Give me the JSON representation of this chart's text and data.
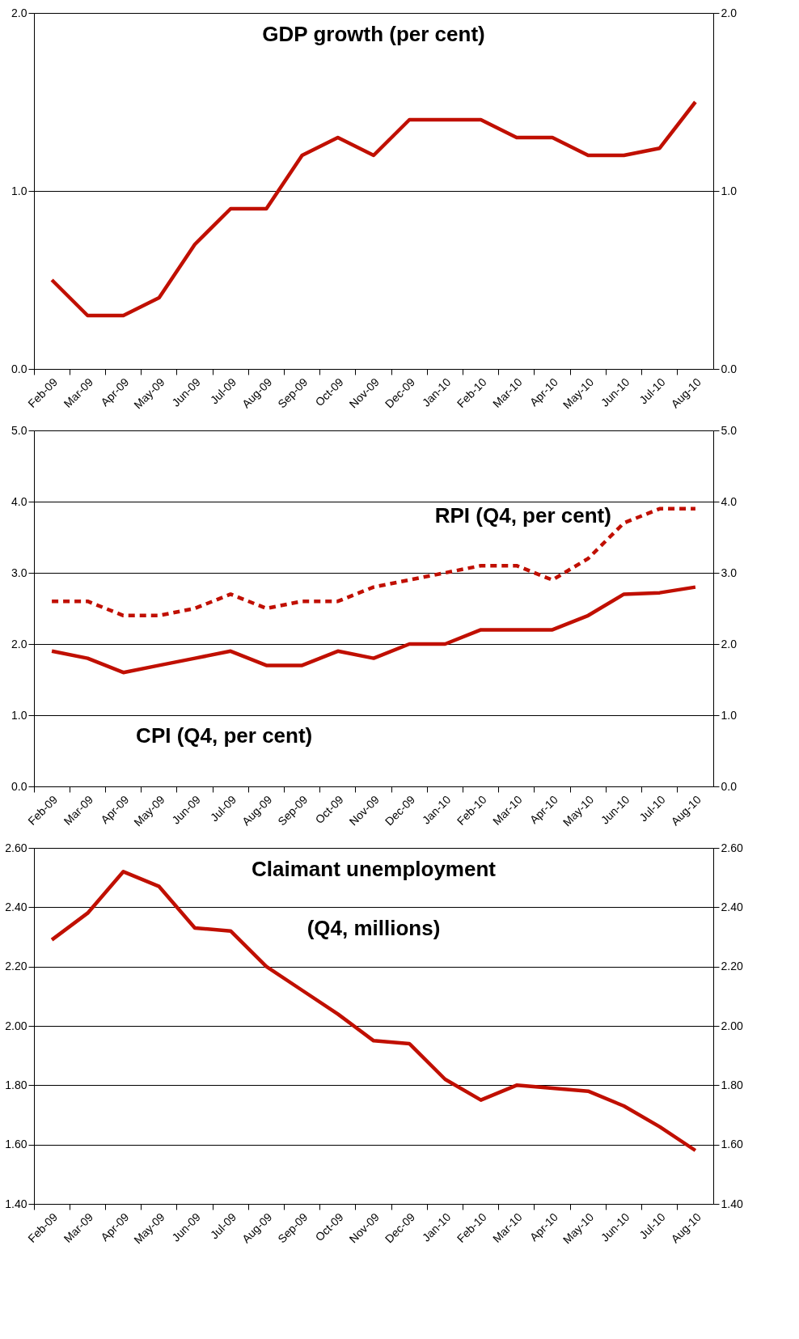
{
  "chart_data": [
    {
      "type": "line",
      "title": "GDP growth (per cent)",
      "categories": [
        "Feb-09",
        "Mar-09",
        "Apr-09",
        "May-09",
        "Jun-09",
        "Jul-09",
        "Aug-09",
        "Sep-09",
        "Oct-09",
        "Nov-09",
        "Dec-09",
        "Jan-10",
        "Feb-10",
        "Mar-10",
        "Apr-10",
        "May-10",
        "Jun-10",
        "Jul-10",
        "Aug-10"
      ],
      "series": [
        {
          "color": "#c00f00",
          "line_style": "solid",
          "values": [
            0.5,
            0.3,
            0.3,
            0.4,
            0.7,
            0.9,
            0.9,
            1.2,
            1.3,
            1.2,
            1.4,
            1.4,
            1.4,
            1.3,
            1.3,
            1.2,
            1.2,
            1.24,
            1.5
          ]
        }
      ],
      "ylim": [
        0,
        2
      ],
      "yticks": [
        {
          "value": 0,
          "label": "0.0"
        },
        {
          "value": 1,
          "label": "1.0"
        },
        {
          "value": 2,
          "label": "2.0"
        }
      ],
      "y2lim": [
        0,
        2
      ],
      "y2ticks": [
        {
          "value": 0,
          "label": "0.0"
        },
        {
          "value": 1,
          "label": "1.0"
        },
        {
          "value": 2,
          "label": "2.0"
        }
      ],
      "grid": "y",
      "marker": "none"
    },
    {
      "type": "line",
      "categories": [
        "Feb-09",
        "Mar-09",
        "Apr-09",
        "May-09",
        "Jun-09",
        "Jul-09",
        "Aug-09",
        "Sep-09",
        "Oct-09",
        "Nov-09",
        "Dec-09",
        "Jan-10",
        "Feb-10",
        "Mar-10",
        "Apr-10",
        "May-10",
        "Jun-10",
        "Jul-10",
        "Aug-10"
      ],
      "series": [
        {
          "name": "RPI (Q4, per cent)",
          "color": "#c00f00",
          "line_style": "dashed",
          "values": [
            2.6,
            2.6,
            2.4,
            2.4,
            2.5,
            2.7,
            2.5,
            2.6,
            2.6,
            2.8,
            2.9,
            3.0,
            3.1,
            3.1,
            2.9,
            3.2,
            3.7,
            3.9,
            3.9
          ]
        },
        {
          "name": "CPI (Q4, per cent)",
          "color": "#c00f00",
          "line_style": "solid",
          "values": [
            1.9,
            1.8,
            1.6,
            1.7,
            1.8,
            1.9,
            1.7,
            1.7,
            1.9,
            1.8,
            2.0,
            2.0,
            2.2,
            2.2,
            2.2,
            2.4,
            2.7,
            2.72,
            2.8
          ]
        }
      ],
      "ylim": [
        0,
        5
      ],
      "yticks": [
        {
          "value": 0,
          "label": "0.0"
        },
        {
          "value": 1,
          "label": "1.0"
        },
        {
          "value": 2,
          "label": "2.0"
        },
        {
          "value": 3,
          "label": "3.0"
        },
        {
          "value": 4,
          "label": "4.0"
        },
        {
          "value": 5,
          "label": "5.0"
        }
      ],
      "y2lim": [
        0,
        5
      ],
      "y2ticks": [
        {
          "value": 0,
          "label": "0.0"
        },
        {
          "value": 1,
          "label": "1.0"
        },
        {
          "value": 2,
          "label": "2.0"
        },
        {
          "value": 3,
          "label": "3.0"
        },
        {
          "value": 4,
          "label": "4.0"
        },
        {
          "value": 5,
          "label": "5.0"
        }
      ],
      "grid": "y",
      "marker": "none"
    },
    {
      "type": "line",
      "title": "Claimant unemployment\n(Q4, millions)",
      "categories": [
        "Feb-09",
        "Mar-09",
        "Apr-09",
        "May-09",
        "Jun-09",
        "Jul-09",
        "Aug-09",
        "Sep-09",
        "Oct-09",
        "Nov-09",
        "Dec-09",
        "Jan-10",
        "Feb-10",
        "Mar-10",
        "Apr-10",
        "May-10",
        "Jun-10",
        "Jul-10",
        "Aug-10"
      ],
      "series": [
        {
          "color": "#c00f00",
          "line_style": "solid",
          "values": [
            2.29,
            2.38,
            2.52,
            2.47,
            2.33,
            2.32,
            2.2,
            2.12,
            2.04,
            1.95,
            1.94,
            1.82,
            1.75,
            1.8,
            1.79,
            1.78,
            1.73,
            1.66,
            1.58
          ]
        }
      ],
      "ylim": [
        1.4,
        2.6
      ],
      "yticks": [
        {
          "value": 1.4,
          "label": "1.40"
        },
        {
          "value": 1.6,
          "label": "1.60"
        },
        {
          "value": 1.8,
          "label": "1.80"
        },
        {
          "value": 2.0,
          "label": "2.00"
        },
        {
          "value": 2.2,
          "label": "2.20"
        },
        {
          "value": 2.4,
          "label": "2.40"
        },
        {
          "value": 2.6,
          "label": "2.60"
        }
      ],
      "y2lim": [
        1.4,
        2.6
      ],
      "y2ticks": [
        {
          "value": 1.4,
          "label": "1.40"
        },
        {
          "value": 1.6,
          "label": "1.60"
        },
        {
          "value": 1.8,
          "label": "1.80"
        },
        {
          "value": 2.0,
          "label": "2.00"
        },
        {
          "value": 2.2,
          "label": "2.20"
        },
        {
          "value": 2.4,
          "label": "2.40"
        },
        {
          "value": 2.6,
          "label": "2.60"
        }
      ],
      "grid": "y",
      "marker": "none"
    }
  ]
}
